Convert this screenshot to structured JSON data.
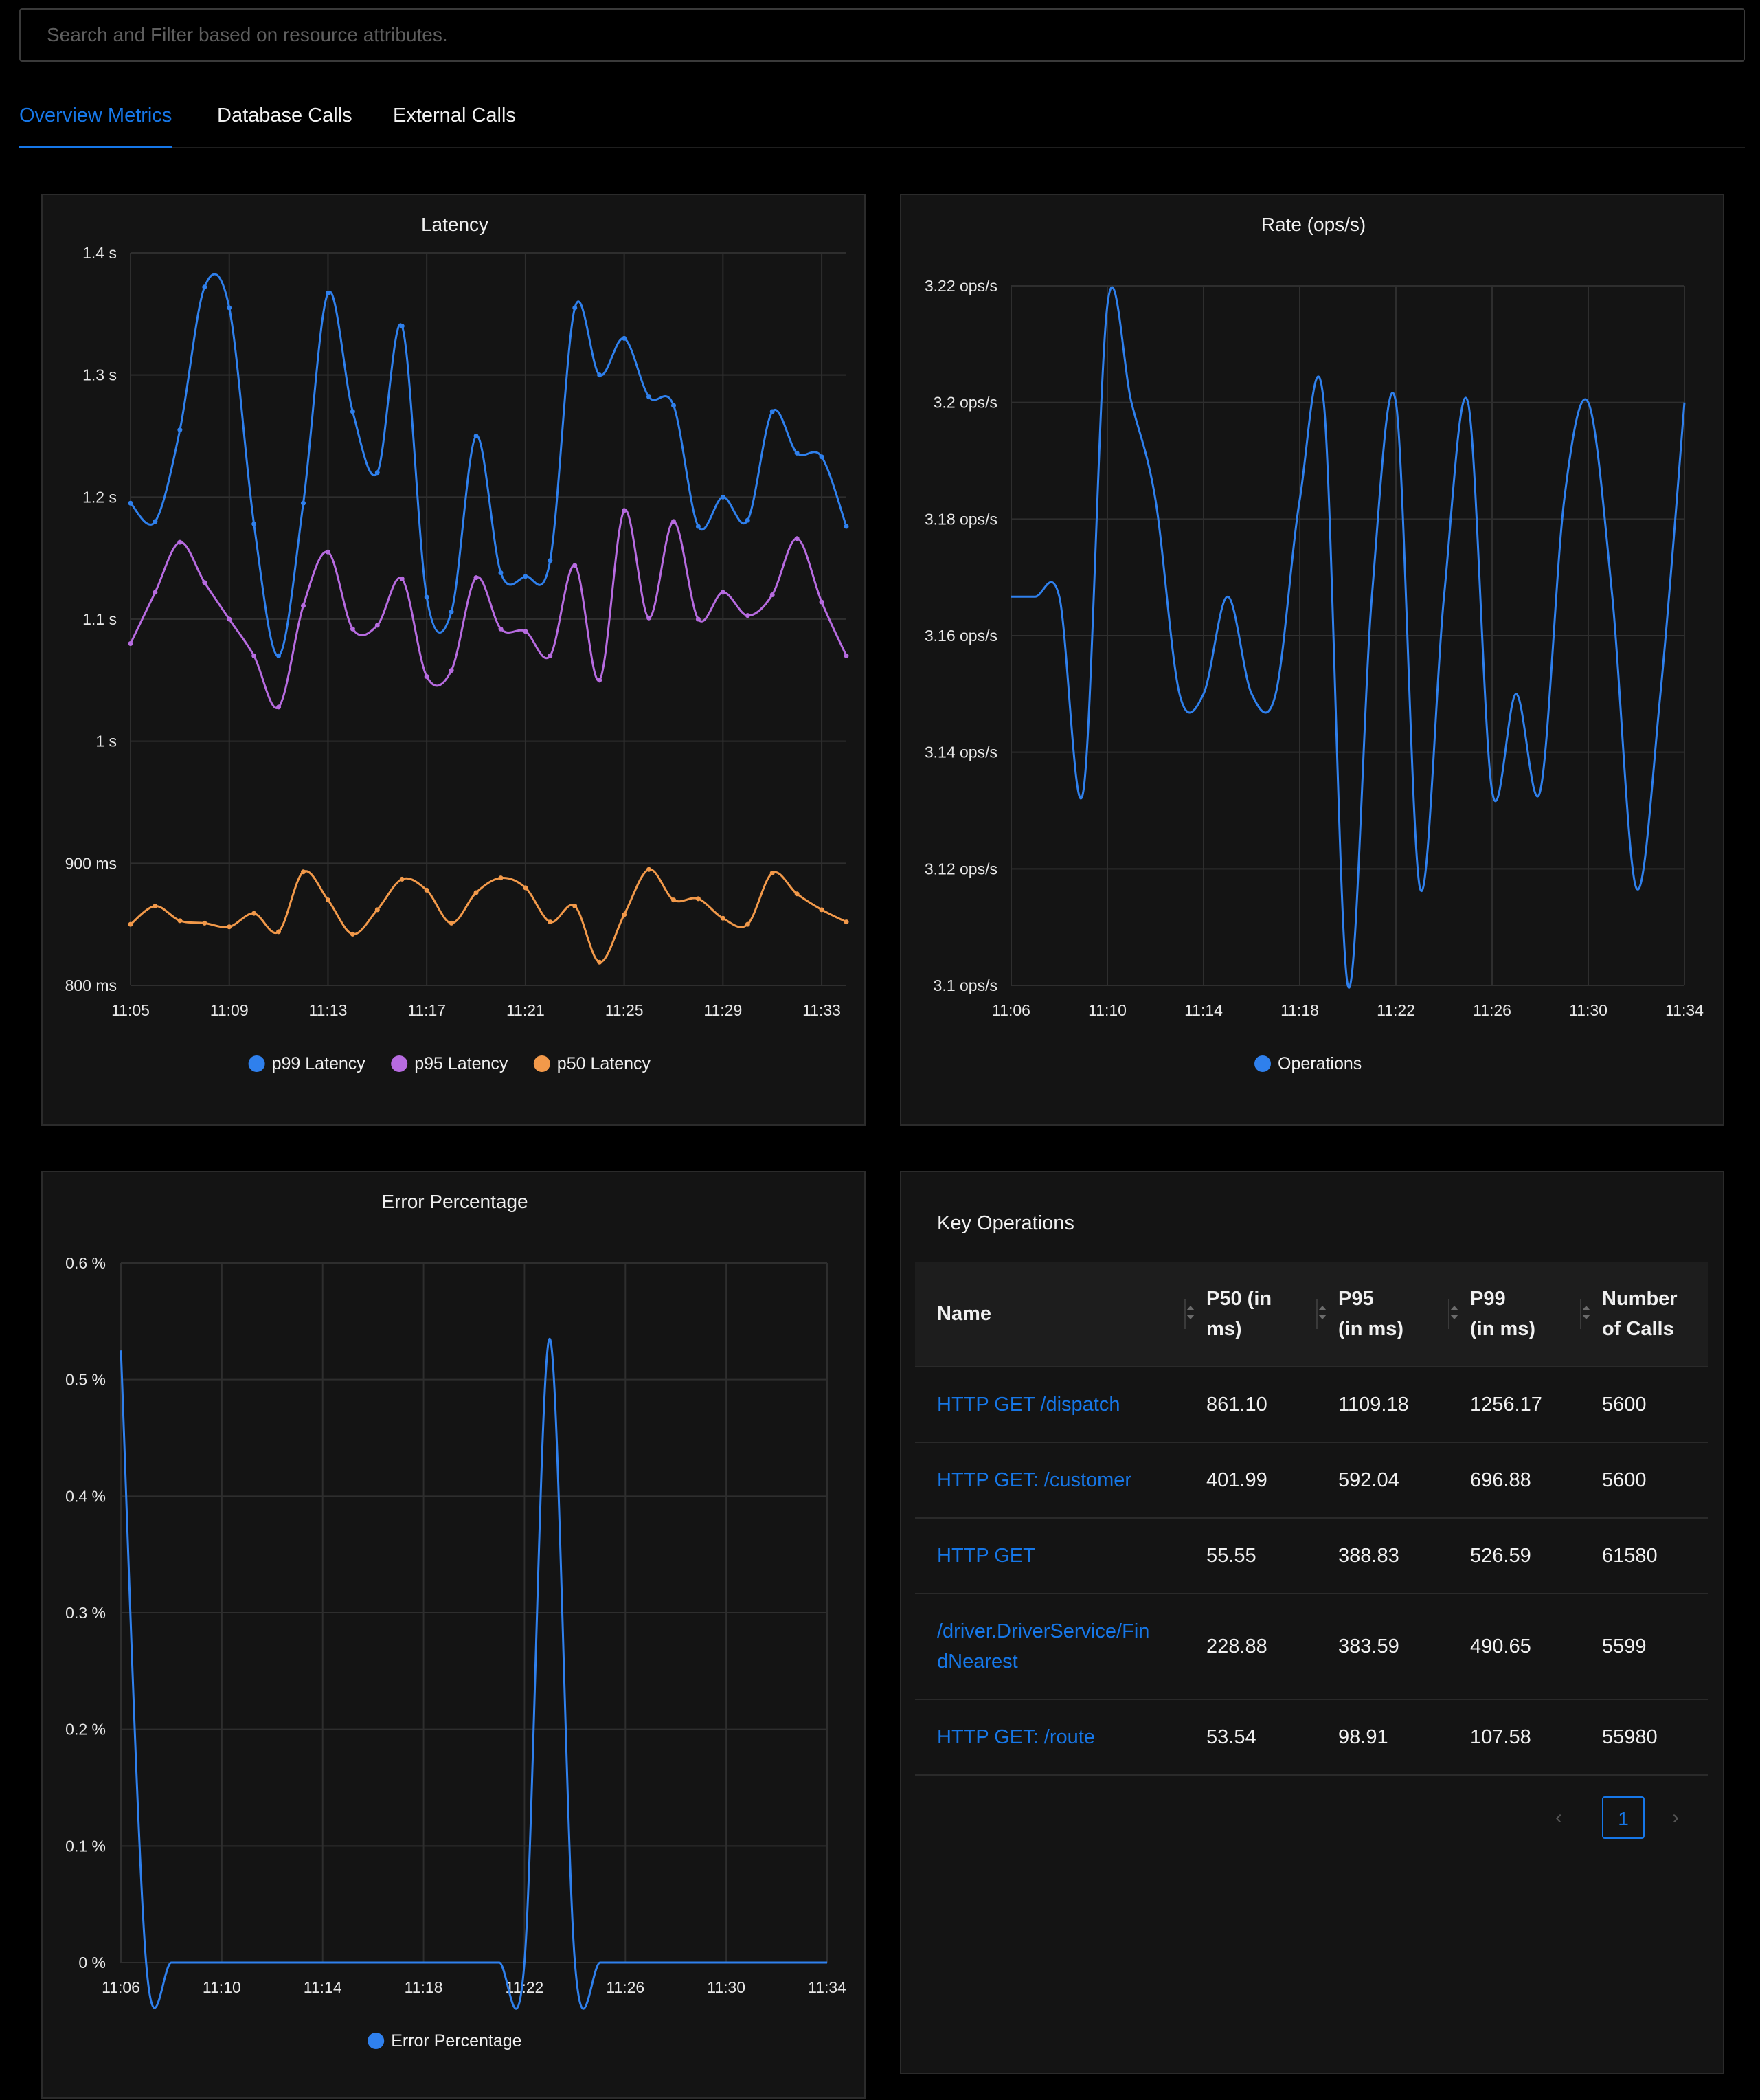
{
  "search": {
    "placeholder": "Search and Filter based on resource attributes."
  },
  "tabs": [
    {
      "label": "Overview Metrics",
      "active": true
    },
    {
      "label": "Database Calls",
      "active": false
    },
    {
      "label": "External Calls",
      "active": false
    }
  ],
  "colors": {
    "accent": "#1677e8",
    "p99": "#2f80ed",
    "p95": "#b76be0",
    "p50": "#f2994a"
  },
  "latency_chart": {
    "title": "Latency"
  },
  "rate_chart": {
    "title": "Rate (ops/s)"
  },
  "error_chart": {
    "title": "Error Percentage"
  },
  "chart_data": [
    {
      "type": "line",
      "title": "Latency",
      "unit": "ms",
      "ylim": [
        800,
        1400
      ],
      "yticks": [
        "800 ms",
        "900 ms",
        "1 s",
        "1.1 s",
        "1.2 s",
        "1.3 s",
        "1.4 s"
      ],
      "xticks": [
        "11:05",
        "11:09",
        "11:13",
        "11:17",
        "11:21",
        "11:25",
        "11:29",
        "11:33"
      ],
      "x": [
        "11:05",
        "11:06",
        "11:07",
        "11:08",
        "11:09",
        "11:10",
        "11:11",
        "11:12",
        "11:13",
        "11:14",
        "11:15",
        "11:16",
        "11:17",
        "11:18",
        "11:19",
        "11:20",
        "11:21",
        "11:22",
        "11:23",
        "11:24",
        "11:25",
        "11:26",
        "11:27",
        "11:28",
        "11:29",
        "11:30",
        "11:31",
        "11:32",
        "11:33",
        "11:34"
      ],
      "grid": true,
      "legend": "bottom",
      "series": [
        {
          "name": "p99 Latency",
          "color": "#2f80ed",
          "values": [
            1195,
            1180,
            1255,
            1372,
            1355,
            1178,
            1070,
            1195,
            1367,
            1270,
            1220,
            1340,
            1118,
            1106,
            1250,
            1138,
            1135,
            1148,
            1355,
            1300,
            1330,
            1282,
            1275,
            1176,
            1200,
            1181,
            1270,
            1236,
            1233,
            1176
          ]
        },
        {
          "name": "p95 Latency",
          "color": "#b76be0",
          "values": [
            1080,
            1122,
            1163,
            1130,
            1100,
            1070,
            1028,
            1111,
            1155,
            1092,
            1095,
            1133,
            1053,
            1058,
            1134,
            1092,
            1090,
            1070,
            1144,
            1050,
            1189,
            1101,
            1180,
            1100,
            1122,
            1103,
            1120,
            1166,
            1114,
            1070
          ]
        },
        {
          "name": "p50 Latency",
          "color": "#f2994a",
          "values": [
            850,
            865,
            853,
            851,
            848,
            859,
            844,
            893,
            870,
            842,
            862,
            887,
            878,
            851,
            876,
            888,
            880,
            852,
            865,
            819,
            858,
            895,
            870,
            871,
            855,
            850,
            892,
            875,
            862,
            852
          ]
        }
      ]
    },
    {
      "type": "line",
      "title": "Rate (ops/s)",
      "unit": "ops/s",
      "ylim": [
        3.1,
        3.22
      ],
      "yticks": [
        "3.1 ops/s",
        "3.12 ops/s",
        "3.14 ops/s",
        "3.16 ops/s",
        "3.18 ops/s",
        "3.2 ops/s",
        "3.22 ops/s"
      ],
      "xticks": [
        "11:06",
        "11:10",
        "11:14",
        "11:18",
        "11:22",
        "11:26",
        "11:30",
        "11:34"
      ],
      "x": [
        "11:06",
        "11:07",
        "11:08",
        "11:09",
        "11:10",
        "11:11",
        "11:12",
        "11:13",
        "11:14",
        "11:15",
        "11:16",
        "11:17",
        "11:18",
        "11:19",
        "11:20",
        "11:21",
        "11:22",
        "11:23",
        "11:24",
        "11:25",
        "11:26",
        "11:27",
        "11:28",
        "11:29",
        "11:30",
        "11:31",
        "11:32",
        "11:33",
        "11:34"
      ],
      "grid": true,
      "legend": "bottom",
      "series": [
        {
          "name": "Operations",
          "color": "#2f80ed",
          "values": [
            3.1667,
            3.1667,
            3.1667,
            3.1333,
            3.2167,
            3.2,
            3.1833,
            3.15,
            3.15,
            3.1667,
            3.15,
            3.15,
            3.1833,
            3.2,
            3.1,
            3.1667,
            3.2,
            3.1167,
            3.1667,
            3.2,
            3.1333,
            3.15,
            3.1333,
            3.1833,
            3.2,
            3.1667,
            3.1167,
            3.15,
            3.2
          ]
        }
      ]
    },
    {
      "type": "line",
      "title": "Error Percentage",
      "unit": "%",
      "ylim": [
        0,
        0.6
      ],
      "yticks": [
        "0 %",
        "0.1 %",
        "0.2 %",
        "0.3 %",
        "0.4 %",
        "0.5 %",
        "0.6 %"
      ],
      "xticks": [
        "11:06",
        "11:10",
        "11:14",
        "11:18",
        "11:22",
        "11:26",
        "11:30",
        "11:34"
      ],
      "x": [
        "11:06",
        "11:07",
        "11:08",
        "11:09",
        "11:10",
        "11:11",
        "11:12",
        "11:13",
        "11:14",
        "11:15",
        "11:16",
        "11:17",
        "11:18",
        "11:19",
        "11:20",
        "11:21",
        "11:22",
        "11:23",
        "11:24",
        "11:25",
        "11:26",
        "11:27",
        "11:28",
        "11:29",
        "11:30",
        "11:31",
        "11:32",
        "11:33",
        "11:34"
      ],
      "grid": true,
      "legend": "bottom",
      "series": [
        {
          "name": "Error Percentage",
          "color": "#2f80ed",
          "values": [
            0.525,
            0,
            0,
            0,
            0,
            0,
            0,
            0,
            0,
            0,
            0,
            0,
            0,
            0,
            0,
            0,
            0,
            0.535,
            0,
            0,
            0,
            0,
            0,
            0,
            0,
            0,
            0,
            0,
            0
          ]
        }
      ]
    },
    {
      "type": "table",
      "title": "Key Operations",
      "columns": [
        "Name",
        "P50 (in ms)",
        "P95 (in ms)",
        "P99 (in ms)",
        "Number of Calls"
      ],
      "rows": [
        [
          "HTTP GET /dispatch",
          "861.10",
          "1109.18",
          "1256.17",
          "5600"
        ],
        [
          "HTTP GET: /customer",
          "401.99",
          "592.04",
          "696.88",
          "5600"
        ],
        [
          "HTTP GET",
          "55.55",
          "388.83",
          "526.59",
          "61580"
        ],
        [
          "/driver.DriverService/FindNearest",
          "228.88",
          "383.59",
          "490.65",
          "5599"
        ],
        [
          "HTTP GET: /route",
          "53.54",
          "98.91",
          "107.58",
          "55980"
        ]
      ]
    }
  ],
  "key_operations": {
    "title": "Key Operations",
    "headers": {
      "name": "Name",
      "p50_line1": "P50 (in",
      "p50_line2": "ms)",
      "p95_line1": "P95",
      "p95_line2": "(in ms)",
      "p99_line1": "P99",
      "p99_line2": "(in ms)",
      "calls_line1": "Number",
      "calls_line2": "of Calls"
    },
    "rows": [
      {
        "name": [
          "HTTP GET /dispatch"
        ],
        "p50": "861.10",
        "p95": "1109.18",
        "p99": "1256.17",
        "calls": "5600"
      },
      {
        "name": [
          "HTTP GET: /customer"
        ],
        "p50": "401.99",
        "p95": "592.04",
        "p99": "696.88",
        "calls": "5600"
      },
      {
        "name": [
          "HTTP GET"
        ],
        "p50": "55.55",
        "p95": "388.83",
        "p99": "526.59",
        "calls": "61580"
      },
      {
        "name": [
          "/driver.DriverService/Fin",
          "dNearest"
        ],
        "p50": "228.88",
        "p95": "383.59",
        "p99": "490.65",
        "calls": "5599"
      },
      {
        "name": [
          "HTTP GET: /route"
        ],
        "p50": "53.54",
        "p95": "98.91",
        "p99": "107.58",
        "calls": "55980"
      }
    ],
    "pagination": {
      "prev_icon": "chevron-left-icon",
      "current_page": "1",
      "next_icon": "chevron-right-icon"
    }
  }
}
